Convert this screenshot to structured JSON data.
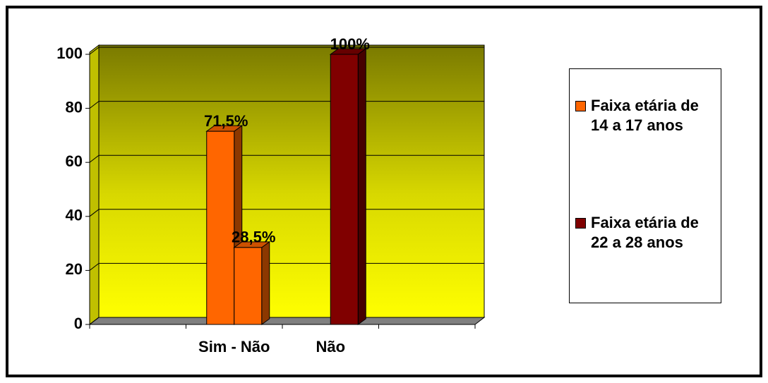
{
  "chart_data": {
    "type": "bar3d",
    "categories": [
      null,
      "Sim - Não",
      "Não",
      null
    ],
    "series": [
      {
        "name": "Faixa etária de 14 a 17 anos",
        "color": "#ff6600",
        "values": [
          null,
          71.5,
          null,
          null
        ],
        "value_labels": [
          null,
          "71,5%",
          null,
          null
        ]
      },
      {
        "name": "Faixa etária de 22 a 28 anos",
        "color": "#800000",
        "values": [
          null,
          null,
          100,
          null
        ],
        "value_labels": [
          null,
          null,
          "100%",
          null
        ]
      },
      {
        "color": "#ff6600",
        "values": [
          null,
          28.5,
          null,
          null
        ],
        "value_labels": [
          null,
          "28,5%",
          null,
          null
        ]
      }
    ],
    "ylim": [
      0,
      100
    ],
    "yticks": [
      0,
      20,
      40,
      60,
      80,
      100
    ],
    "grid": true,
    "legend": "right"
  }
}
